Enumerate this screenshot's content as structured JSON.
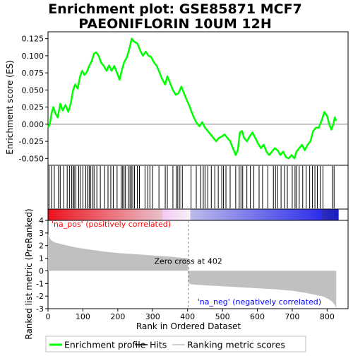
{
  "chart_data": {
    "type": "line",
    "title_line1": "Enrichment plot: GSE85871 MCF7",
    "title_line2": "PAEONIFLORIN 10UM 12H",
    "es_panel": {
      "ylabel": "Enrichment score (ES)",
      "ylim": [
        -0.06,
        0.135
      ],
      "yticks": [
        "0.125",
        "0.100",
        "0.075",
        "0.050",
        "0.025",
        "0.000",
        "-0.025",
        "-0.050"
      ],
      "ytick_values": [
        0.125,
        0.1,
        0.075,
        0.05,
        0.025,
        0.0,
        -0.025,
        -0.05
      ],
      "color": "#00ff00",
      "points": [
        [
          0,
          -0.005
        ],
        [
          5,
          0.0
        ],
        [
          10,
          0.015
        ],
        [
          15,
          0.025
        ],
        [
          22,
          0.015
        ],
        [
          28,
          0.01
        ],
        [
          35,
          0.03
        ],
        [
          42,
          0.02
        ],
        [
          50,
          0.028
        ],
        [
          58,
          0.018
        ],
        [
          65,
          0.03
        ],
        [
          72,
          0.05
        ],
        [
          78,
          0.058
        ],
        [
          85,
          0.052
        ],
        [
          92,
          0.07
        ],
        [
          98,
          0.078
        ],
        [
          104,
          0.072
        ],
        [
          110,
          0.075
        ],
        [
          118,
          0.085
        ],
        [
          125,
          0.092
        ],
        [
          132,
          0.103
        ],
        [
          138,
          0.105
        ],
        [
          145,
          0.1
        ],
        [
          152,
          0.09
        ],
        [
          160,
          0.085
        ],
        [
          168,
          0.078
        ],
        [
          175,
          0.086
        ],
        [
          182,
          0.078
        ],
        [
          190,
          0.085
        ],
        [
          198,
          0.075
        ],
        [
          205,
          0.065
        ],
        [
          212,
          0.08
        ],
        [
          218,
          0.09
        ],
        [
          226,
          0.098
        ],
        [
          234,
          0.112
        ],
        [
          240,
          0.125
        ],
        [
          248,
          0.12
        ],
        [
          256,
          0.118
        ],
        [
          264,
          0.108
        ],
        [
          272,
          0.1
        ],
        [
          280,
          0.106
        ],
        [
          288,
          0.1
        ],
        [
          296,
          0.098
        ],
        [
          304,
          0.09
        ],
        [
          312,
          0.085
        ],
        [
          320,
          0.075
        ],
        [
          328,
          0.065
        ],
        [
          336,
          0.058
        ],
        [
          342,
          0.07
        ],
        [
          350,
          0.06
        ],
        [
          358,
          0.05
        ],
        [
          366,
          0.043
        ],
        [
          374,
          0.045
        ],
        [
          382,
          0.055
        ],
        [
          390,
          0.045
        ],
        [
          398,
          0.035
        ],
        [
          404,
          0.028
        ],
        [
          410,
          0.02
        ],
        [
          418,
          0.01
        ],
        [
          426,
          0.002
        ],
        [
          434,
          -0.003
        ],
        [
          442,
          0.003
        ],
        [
          450,
          -0.005
        ],
        [
          458,
          -0.01
        ],
        [
          466,
          -0.015
        ],
        [
          474,
          -0.02
        ],
        [
          482,
          -0.025
        ],
        [
          490,
          -0.02
        ],
        [
          498,
          -0.018
        ],
        [
          506,
          -0.015
        ],
        [
          514,
          -0.02
        ],
        [
          522,
          -0.025
        ],
        [
          530,
          -0.035
        ],
        [
          538,
          -0.045
        ],
        [
          544,
          -0.038
        ],
        [
          550,
          -0.012
        ],
        [
          556,
          -0.01
        ],
        [
          562,
          -0.02
        ],
        [
          570,
          -0.025
        ],
        [
          578,
          -0.018
        ],
        [
          586,
          -0.012
        ],
        [
          594,
          -0.02
        ],
        [
          602,
          -0.028
        ],
        [
          610,
          -0.035
        ],
        [
          618,
          -0.03
        ],
        [
          626,
          -0.04
        ],
        [
          634,
          -0.045
        ],
        [
          642,
          -0.04
        ],
        [
          650,
          -0.035
        ],
        [
          658,
          -0.038
        ],
        [
          666,
          -0.045
        ],
        [
          674,
          -0.04
        ],
        [
          682,
          -0.048
        ],
        [
          690,
          -0.05
        ],
        [
          698,
          -0.045
        ],
        [
          706,
          -0.05
        ],
        [
          712,
          -0.04
        ],
        [
          720,
          -0.035
        ],
        [
          728,
          -0.03
        ],
        [
          736,
          -0.038
        ],
        [
          744,
          -0.03
        ],
        [
          752,
          -0.025
        ],
        [
          760,
          -0.01
        ],
        [
          768,
          -0.005
        ],
        [
          776,
          -0.005
        ],
        [
          784,
          0.005
        ],
        [
          792,
          0.018
        ],
        [
          800,
          0.012
        ],
        [
          806,
          0.0
        ],
        [
          812,
          -0.008
        ],
        [
          818,
          0.0
        ],
        [
          822,
          0.01
        ],
        [
          826,
          0.005
        ]
      ]
    },
    "ranked_panel": {
      "ylabel": "Ranked list metric (PreRanked)",
      "ylim": [
        -3,
        4
      ],
      "yticks": [
        "4",
        "3",
        "2",
        "1",
        "0",
        "-1",
        "-2",
        "-3"
      ],
      "ytick_values": [
        4,
        3,
        2,
        1,
        0,
        -1,
        -2,
        -3
      ],
      "fill_color": "#c0c0c0",
      "zero_cross_rank": 402,
      "zero_cross_label": "Zero cross at 402",
      "pos_label": "'na_pos' (positively correlated)",
      "neg_label": "'na_neg' (negatively correlated)",
      "pos_label_color": "#ff0000",
      "neg_label_color": "#0000ff",
      "metric_points": [
        [
          0,
          2.9
        ],
        [
          5,
          2.6
        ],
        [
          10,
          2.4
        ],
        [
          20,
          2.25
        ],
        [
          40,
          2.1
        ],
        [
          80,
          1.85
        ],
        [
          120,
          1.68
        ],
        [
          160,
          1.53
        ],
        [
          200,
          1.42
        ],
        [
          240,
          1.34
        ],
        [
          280,
          1.26
        ],
        [
          320,
          1.18
        ],
        [
          360,
          1.1
        ],
        [
          400,
          1.0
        ],
        [
          401,
          0.95
        ],
        [
          403,
          -1.0
        ],
        [
          410,
          -1.07
        ],
        [
          450,
          -1.15
        ],
        [
          500,
          -1.22
        ],
        [
          550,
          -1.3
        ],
        [
          600,
          -1.38
        ],
        [
          650,
          -1.46
        ],
        [
          700,
          -1.58
        ],
        [
          740,
          -1.75
        ],
        [
          770,
          -1.92
        ],
        [
          790,
          -2.05
        ],
        [
          805,
          -2.25
        ],
        [
          815,
          -2.45
        ],
        [
          822,
          -2.7
        ],
        [
          826,
          -2.95
        ]
      ]
    },
    "x_axis": {
      "xlabel": "Rank in Ordered Dataset",
      "xlim": [
        0,
        860
      ],
      "xticks": [
        "0",
        "100",
        "200",
        "300",
        "400",
        "500",
        "600",
        "700",
        "800"
      ],
      "xtick_values": [
        0,
        100,
        200,
        300,
        400,
        500,
        600,
        700,
        800
      ],
      "n_genes": 826
    },
    "hits": [
      3,
      10,
      18,
      30,
      35,
      45,
      55,
      62,
      68,
      72,
      75,
      80,
      88,
      92,
      100,
      108,
      113,
      118,
      122,
      127,
      132,
      140,
      150,
      162,
      172,
      180,
      187,
      198,
      210,
      214,
      218,
      222,
      230,
      235,
      239,
      243,
      248,
      256,
      262,
      278,
      286,
      292,
      300,
      318,
      336,
      342,
      358,
      368,
      372,
      378,
      385,
      410,
      425,
      438,
      445,
      450,
      458,
      468,
      478,
      488,
      498,
      503,
      510,
      522,
      538,
      548,
      553,
      558,
      570,
      580,
      590,
      605,
      615,
      630,
      646,
      652,
      658,
      668,
      678,
      686,
      700,
      708,
      712,
      720,
      730,
      740,
      750,
      758,
      765,
      772,
      780,
      788,
      815,
      820
    ],
    "legend": [
      {
        "label": "Enrichment profile",
        "color": "#00ff00"
      },
      {
        "label": "Hits",
        "color": "#000000"
      },
      {
        "label": "Ranking metric scores",
        "color": "#c0c0c0"
      }
    ]
  }
}
